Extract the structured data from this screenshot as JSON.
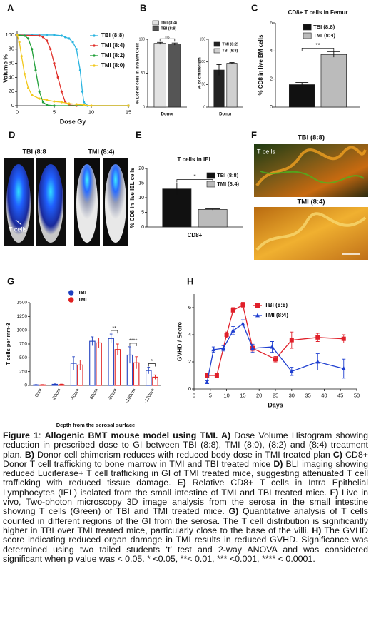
{
  "panel_labels": [
    "A",
    "B",
    "C",
    "D",
    "E",
    "F",
    "G",
    "H"
  ],
  "chart_data": [
    {
      "type": "line",
      "xlabel": "Dose Gy",
      "ylabel": "Volume %",
      "xlim": [
        0,
        15
      ],
      "xticks": [
        0,
        5,
        10,
        15
      ],
      "ylim": [
        0,
        105
      ],
      "yticks": [
        0,
        20,
        40,
        60,
        80,
        100
      ],
      "series": [
        {
          "name": "TBI (8:8)",
          "color": "#2ab4e0",
          "marker": "circle",
          "x": [
            0,
            2,
            4,
            5,
            6,
            6.5,
            7,
            7.5,
            8,
            8.5,
            8.8,
            9,
            9.5,
            15
          ],
          "values": [
            100,
            100,
            100,
            100,
            99,
            97,
            95,
            90,
            80,
            50,
            20,
            5,
            0,
            0
          ]
        },
        {
          "name": "TMI (8:4)",
          "color": "#e0302a",
          "marker": "circle",
          "x": [
            0,
            3,
            3.5,
            4,
            4.5,
            5,
            5.5,
            6,
            6.5,
            7,
            8,
            15
          ],
          "values": [
            100,
            99,
            97,
            92,
            80,
            60,
            40,
            20,
            5,
            1,
            0,
            0
          ]
        },
        {
          "name": "TMI (8:2)",
          "color": "#22a03a",
          "marker": "circle",
          "x": [
            0,
            1,
            1.5,
            2,
            2.5,
            3,
            3.5,
            4,
            5,
            15
          ],
          "values": [
            100,
            99,
            95,
            80,
            50,
            20,
            5,
            1,
            0,
            0
          ]
        },
        {
          "name": "TMI (8:0)",
          "color": "#f2c81e",
          "marker": "circle",
          "x": [
            0,
            0.3,
            0.6,
            1,
            1.5,
            2,
            3,
            4,
            5,
            6,
            7,
            8,
            9,
            10,
            15
          ],
          "values": [
            100,
            90,
            70,
            45,
            25,
            15,
            10,
            8,
            6,
            5,
            3,
            2,
            1,
            0,
            0
          ]
        }
      ]
    },
    {
      "type": "bar",
      "ylabel": "% Donor cells in live BM Cells",
      "categories": [
        "Donor"
      ],
      "ylim": [
        0,
        100
      ],
      "yticks": [
        0,
        50,
        100
      ],
      "annotations": [
        "ns"
      ],
      "series": [
        {
          "name": "TMI (8:4)",
          "color": "#e2e2e2",
          "values": [
            94
          ],
          "errors": [
            1.5
          ]
        },
        {
          "name": "TBI (8:8)",
          "color": "#555555",
          "values": [
            93
          ],
          "errors": [
            1.5
          ]
        }
      ]
    },
    {
      "type": "bar",
      "ylabel": "% of chimerism",
      "categories": [
        "Donor"
      ],
      "ylim": [
        0,
        150
      ],
      "yticks": [
        0,
        50,
        100,
        150
      ],
      "series": [
        {
          "name": "TMI (8:2)",
          "color": "#222222",
          "values": [
            82
          ],
          "errors": [
            12
          ]
        },
        {
          "name": "TBI (8:8)",
          "color": "#d0d0d0",
          "values": [
            97
          ],
          "errors": [
            1.5
          ]
        }
      ]
    },
    {
      "type": "bar",
      "title": "CD8+ T cells in Femur",
      "ylabel": "% CD8 in live BM cells",
      "categories": [
        null
      ],
      "ylim": [
        0,
        6
      ],
      "yticks": [
        0,
        2,
        4,
        6
      ],
      "annotations": [
        "**"
      ],
      "series": [
        {
          "name": "TBI (8:8)",
          "color": "#111111",
          "values": [
            1.6
          ],
          "errors": [
            0.15
          ]
        },
        {
          "name": "TMI (8:4)",
          "color": "#bbbbbb",
          "values": [
            3.75
          ],
          "errors": [
            0.2
          ]
        }
      ]
    },
    {
      "type": "bar",
      "title": "T cells in IEL",
      "ylabel": "% CD8 in live IEL cells",
      "categories": [
        "CD8+"
      ],
      "ylim": [
        0,
        20
      ],
      "yticks": [
        0,
        5,
        10,
        15,
        20
      ],
      "annotations": [
        "*"
      ],
      "series": [
        {
          "name": "TBI (8:8)",
          "color": "#111111",
          "values": [
            13
          ],
          "errors": [
            2
          ]
        },
        {
          "name": "TMI (8:4)",
          "color": "#bbbbbb",
          "values": [
            6
          ],
          "errors": [
            0.2
          ]
        }
      ]
    },
    {
      "type": "bar",
      "bar_style": "outline",
      "xlabel": "Depth from the serosal surface",
      "ylabel": "T cells per mm-3",
      "categories": [
        "-0µm",
        "-20µm",
        "-40µm",
        "-60µm",
        "-80µm",
        "-100µm",
        "-120µm"
      ],
      "ylim": [
        0,
        1500
      ],
      "yticks": [
        0,
        250,
        500,
        750,
        1000,
        1250,
        1500
      ],
      "annotations": [
        null,
        null,
        null,
        null,
        "**",
        "****",
        "*"
      ],
      "series": [
        {
          "name": "TBI",
          "color": "#1f3fbf",
          "values": [
            10,
            20,
            400,
            800,
            850,
            550,
            270
          ],
          "errors": [
            5,
            8,
            120,
            80,
            80,
            150,
            60
          ]
        },
        {
          "name": "TMI",
          "color": "#e02020",
          "values": [
            10,
            15,
            370,
            770,
            650,
            410,
            150
          ],
          "errors": [
            5,
            8,
            90,
            90,
            100,
            110,
            40
          ]
        }
      ]
    },
    {
      "type": "line",
      "xlabel": "Days",
      "ylabel": "GVHD / Score",
      "xlim": [
        0,
        50
      ],
      "xticks": [
        0,
        5,
        10,
        15,
        20,
        25,
        30,
        35,
        40,
        45,
        50
      ],
      "ylim": [
        0,
        7
      ],
      "yticks": [
        0,
        2,
        4,
        6
      ],
      "series": [
        {
          "name": "TBI (8:8)",
          "color": "#e0202a",
          "marker": "square",
          "x": [
            4,
            7,
            10,
            12,
            15,
            18,
            25,
            30,
            38,
            46
          ],
          "values": [
            1,
            1,
            4,
            5.8,
            6.2,
            3,
            2.2,
            3.6,
            3.8,
            3.7
          ],
          "errors": [
            0.1,
            0.1,
            0.2,
            0.2,
            0.2,
            0.2,
            0.2,
            0.6,
            0.3,
            0.3
          ]
        },
        {
          "name": "TMI (8:4)",
          "color": "#1f3fd0",
          "marker": "triangle",
          "x": [
            4,
            6,
            9,
            12,
            15,
            18,
            24,
            30,
            38,
            46
          ],
          "values": [
            0.5,
            2.9,
            3,
            4.3,
            4.8,
            3,
            3.1,
            1.3,
            2,
            1.5
          ],
          "errors": [
            0.1,
            0.2,
            0.2,
            0.3,
            0.3,
            0.3,
            0.4,
            0.3,
            0.6,
            0.7
          ]
        }
      ]
    }
  ],
  "images": {
    "D": {
      "labels": [
        "TBI (8:8",
        "TMI (8:4)"
      ],
      "annotation": "T cells"
    },
    "F": {
      "labels": [
        "TBI (8:8)",
        "TMI (8:4)"
      ],
      "annotation": "T cells"
    }
  },
  "caption": {
    "segments": [
      {
        "text": "Figure 1",
        "bold": true
      },
      {
        "text": ": ",
        "bold": false
      },
      {
        "text": "Allogenic BMT mouse model using TMI.",
        "bold": true
      },
      {
        "text": " A)",
        "bold": true
      },
      {
        "text": " Dose Volume Histogram showing reduction in prescribed dose to GI between TBI (8:8), TMI (8:0), (8:2) and (8:4) treatment plan.",
        "bold": false
      },
      {
        "text": " B)",
        "bold": true
      },
      {
        "text": " Donor cell chimerism reduces with reduced body dose in TMI treated plan",
        "bold": false
      },
      {
        "text": " C)",
        "bold": true
      },
      {
        "text": " CD8+ Donor T cell trafficking to bone marrow in TMI and TBI treated mice",
        "bold": false
      },
      {
        "text": " D)",
        "bold": true
      },
      {
        "text": " BLI imaging showing reduced Luciferase+ T cell trafficking in GI of TMI treated mice, suggesting attenuated T cell trafficking with reduced tissue damage.",
        "bold": false
      },
      {
        "text": " E)",
        "bold": true
      },
      {
        "text": " Relative CD8+ T cells in Intra Epithelial Lymphocytes (IEL) isolated from the small intestine of TMI and TBI treated mice.",
        "bold": false
      },
      {
        "text": " F)",
        "bold": true
      },
      {
        "text": " Live in vivo, Two-photon microscopy 3D image analysis from the serosa in the small intestine showing T cells (Green) of TBI and TMI treated mice.",
        "bold": false
      },
      {
        "text": " G)",
        "bold": true
      },
      {
        "text": " Quantitative analysis of T cells counted in different regions of the GI from the serosa. The T cell distribution is significantly higher in TBI over TMI treated mice, particularly close to the base of the villi.",
        "bold": false
      },
      {
        "text": " H)",
        "bold": true
      },
      {
        "text": " The GVHD score indicating reduced organ damage in TMI results in reduced GVHD. Significance was determined using two tailed students ‘t’ test and 2-way ANOVA and was considered significant when p value was < 0.05. * <0.05, **< 0.01, *** <0.001, **** < 0.0001.",
        "bold": false
      }
    ]
  }
}
